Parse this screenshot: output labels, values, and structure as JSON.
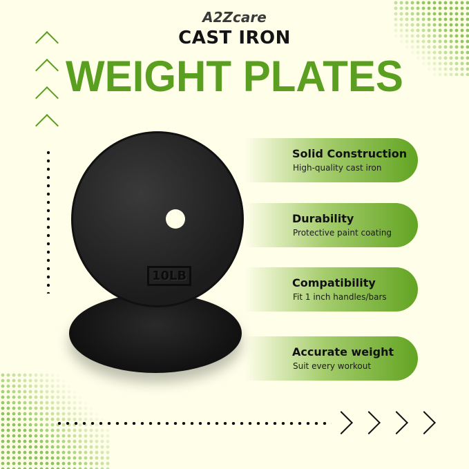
{
  "brand": "A2Zcare",
  "subtitle": "CAST IRON",
  "title": "WEIGHT PLATES",
  "product_label": "10LB",
  "accent_color": "#5a9f1f",
  "features": [
    {
      "heading": "Solid Construction",
      "desc": "High-quality cast iron"
    },
    {
      "heading": "Durability",
      "desc": "Protective paint coating"
    },
    {
      "heading": "Compatibility",
      "desc": "Fit 1 inch handles/bars"
    },
    {
      "heading": "Accurate weight",
      "desc": "Suit every workout"
    }
  ]
}
